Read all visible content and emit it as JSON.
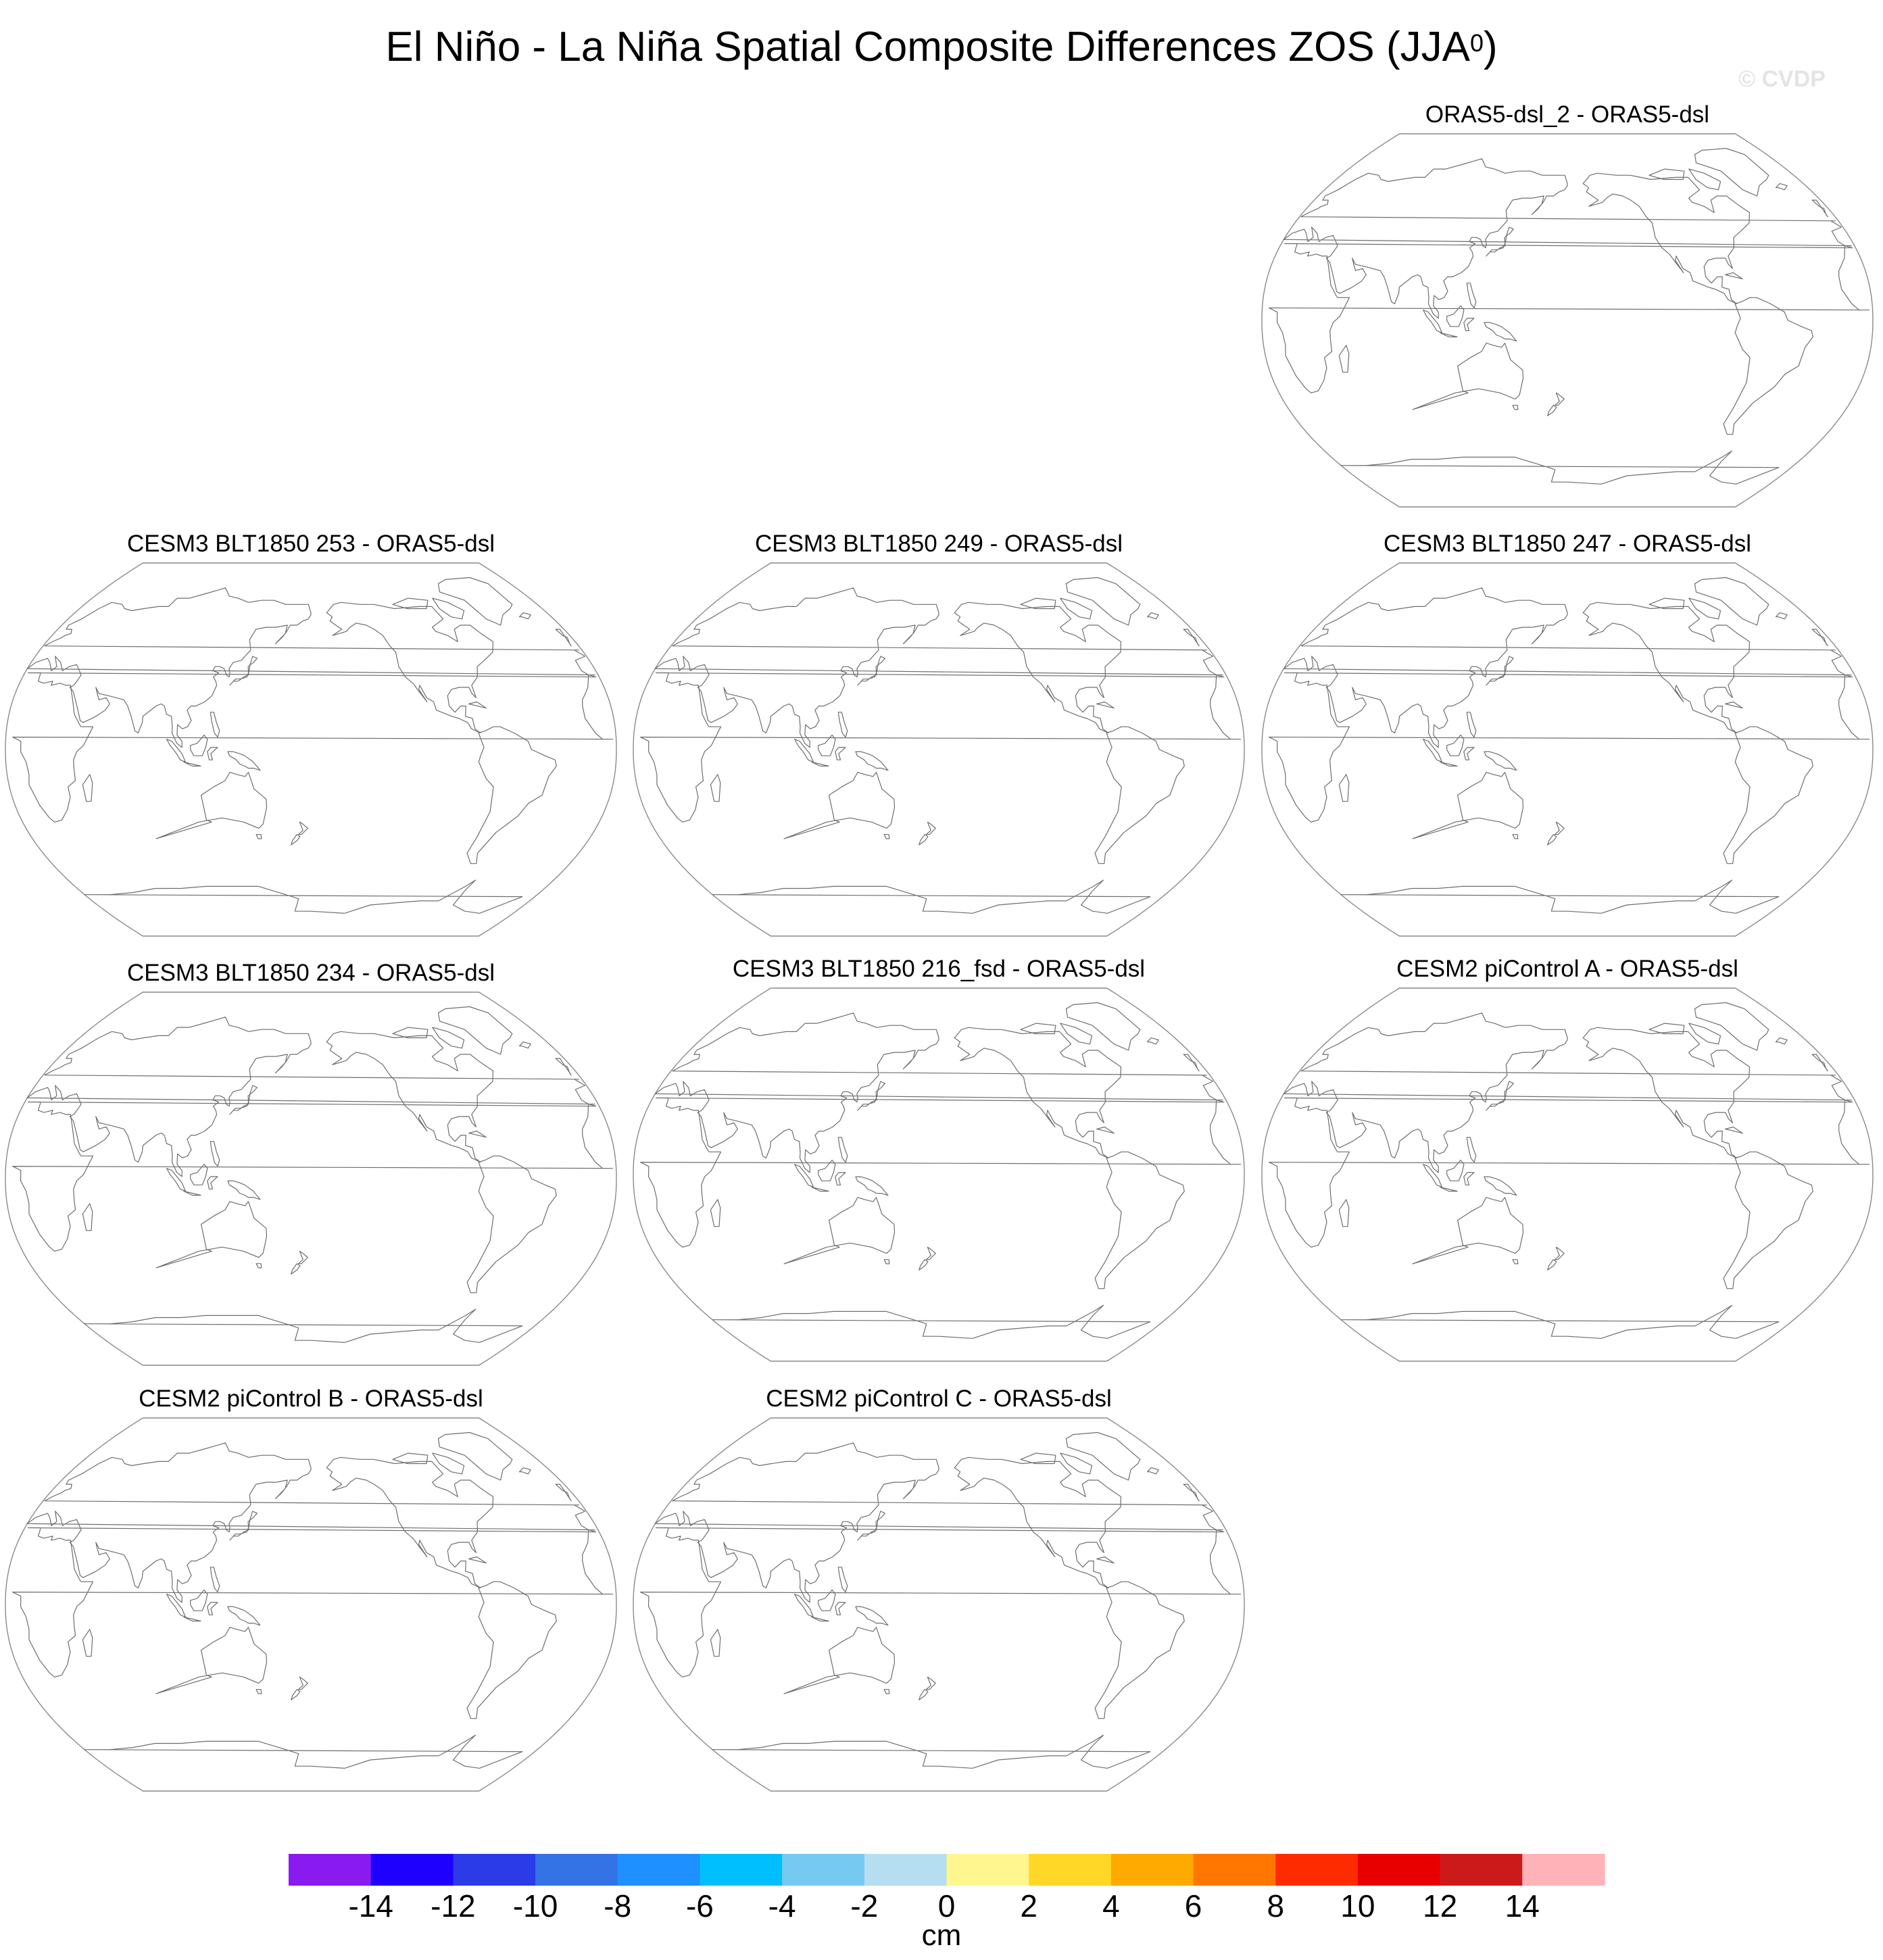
{
  "title": {
    "main": "El Niño - La Niña Spatial Composite Differences ZOS (JJA",
    "superscript": "0",
    "close": ")"
  },
  "watermark": "© CVDP",
  "panels": [
    {
      "title": "ORAS5-dsl_2 - ORAS5-dsl"
    },
    {
      "title": "CESM3 BLT1850 253 - ORAS5-dsl"
    },
    {
      "title": "CESM3 BLT1850 249 - ORAS5-dsl"
    },
    {
      "title": "CESM3 BLT1850 247 - ORAS5-dsl"
    },
    {
      "title": "CESM3 BLT1850 234 - ORAS5-dsl"
    },
    {
      "title": "CESM3 BLT1850 216_fsd - ORAS5-dsl"
    },
    {
      "title": "CESM2 piControl A - ORAS5-dsl"
    },
    {
      "title": "CESM2 piControl B - ORAS5-dsl"
    },
    {
      "title": "CESM2 piControl C - ORAS5-dsl"
    }
  ],
  "colorbar": {
    "colors": [
      "#8a1bf0",
      "#1e00ff",
      "#2b3be8",
      "#3473e6",
      "#1e90ff",
      "#00bfff",
      "#76c9f0",
      "#b5def0",
      "#fff68f",
      "#ffd726",
      "#ffaa00",
      "#ff7700",
      "#ff2b00",
      "#e80000",
      "#cc1a1a",
      "#ffb3b8"
    ],
    "ticks": [
      "-14",
      "-12",
      "-10",
      "-8",
      "-6",
      "-4",
      "-2",
      "0",
      "2",
      "4",
      "6",
      "8",
      "10",
      "12",
      "14"
    ],
    "label": "cm"
  }
}
